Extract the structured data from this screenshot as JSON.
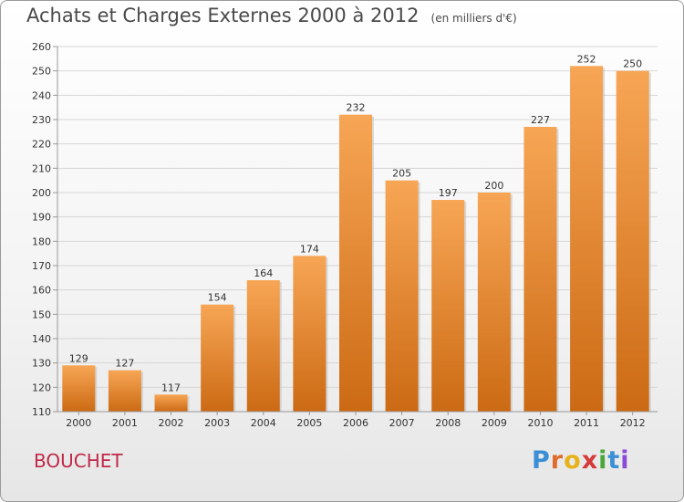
{
  "header": {
    "title": "Achats et Charges Externes 2000 à 2012",
    "unit": "(en milliers d'€)"
  },
  "footer": {
    "commune": "BOUCHET",
    "logo_letters": [
      "P",
      "r",
      "o",
      "x",
      "i",
      "t",
      "i"
    ]
  },
  "colors": {
    "bar_top": "#f7a655",
    "bar_bottom": "#cc6a14",
    "gridline": "#d6d6d6",
    "axis_text": "#333333",
    "commune": "#c0284a"
  },
  "chart_data": {
    "type": "bar",
    "title": "Achats et Charges Externes 2000 à 2012",
    "subtitle": "(en milliers d'€)",
    "categories": [
      "2000",
      "2001",
      "2002",
      "2003",
      "2004",
      "2005",
      "2006",
      "2007",
      "2008",
      "2009",
      "2010",
      "2011",
      "2012"
    ],
    "values": [
      129,
      127,
      117,
      154,
      164,
      174,
      232,
      205,
      197,
      200,
      227,
      252,
      250
    ],
    "ylim": [
      110,
      260
    ],
    "yticks": [
      110,
      120,
      130,
      140,
      150,
      160,
      170,
      180,
      190,
      200,
      210,
      220,
      230,
      240,
      250,
      260
    ],
    "grid": true,
    "data_labels": true
  }
}
